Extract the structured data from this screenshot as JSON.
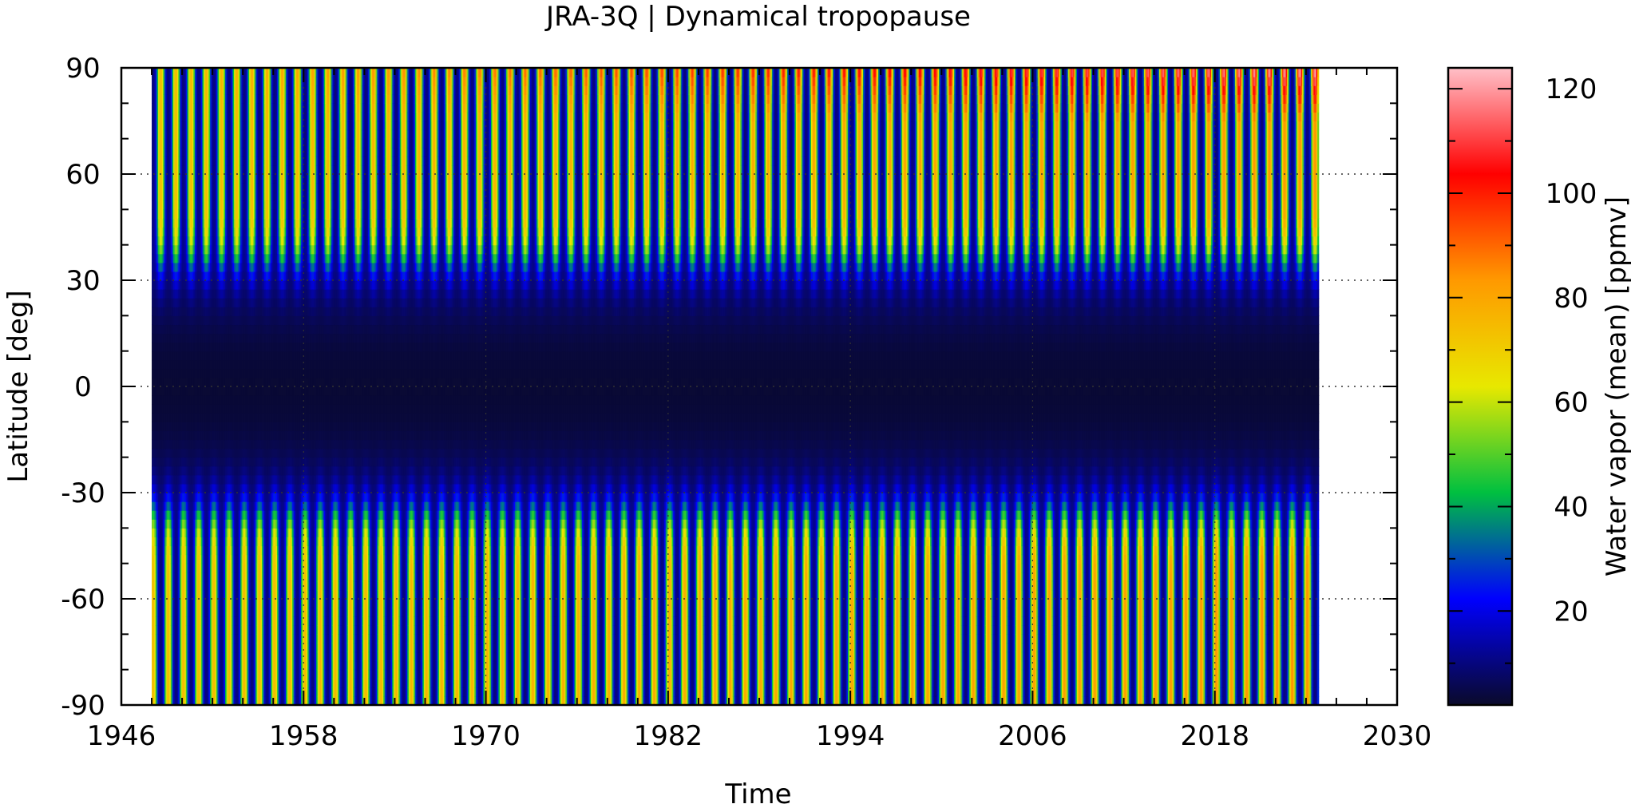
{
  "chart_data": {
    "type": "heatmap",
    "title": "JRA-3Q | Dynamical tropopause",
    "xlabel": "Time",
    "ylabel": "Latitude [deg]",
    "xlim": [
      1946,
      2030
    ],
    "ylim": [
      -90,
      90
    ],
    "x_ticks": [
      1946,
      1958,
      1970,
      1982,
      1994,
      2006,
      2018,
      2030
    ],
    "y_ticks": [
      -90,
      -60,
      -30,
      0,
      30,
      60,
      90
    ],
    "data_time_range": [
      1948,
      2024.75
    ],
    "colorbar": {
      "label": "Water vapor (mean) [ppmv]",
      "range": [
        2,
        124
      ],
      "ticks": [
        20,
        40,
        60,
        80,
        100,
        120
      ],
      "colormap": [
        "#0a0a2a",
        "#0000ff",
        "#00c040",
        "#e8e800",
        "#ff9900",
        "#ff0000",
        "#ffc0c8"
      ]
    },
    "grid": "dotted at major ticks",
    "pattern_summary": {
      "tropics_30S_30N_ppmv": [
        3,
        12
      ],
      "extratropics_peak_ppmv": [
        45,
        70
      ],
      "north_polar_summer_max_ppmv": 110,
      "seasonal_cycle": "annual oscillation in both hemispheres, opposite phase"
    }
  }
}
